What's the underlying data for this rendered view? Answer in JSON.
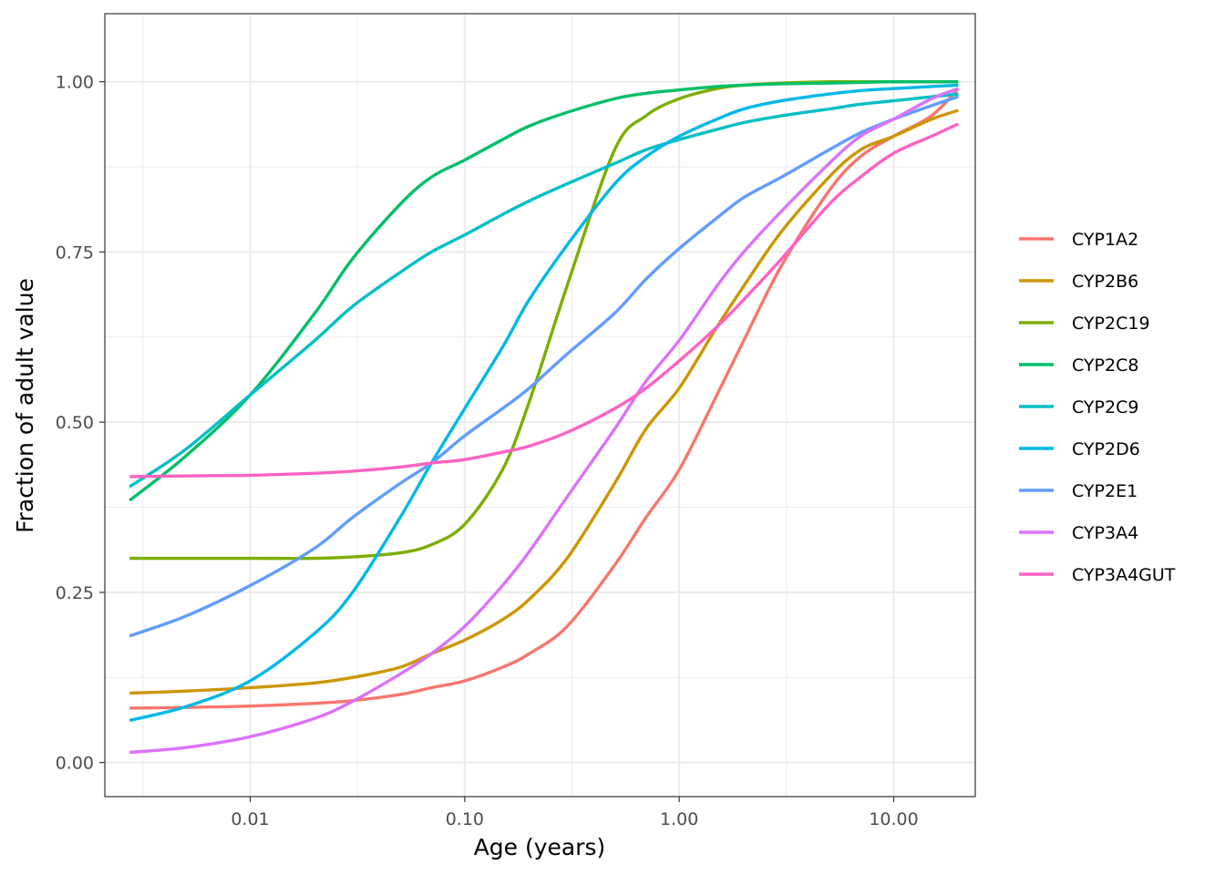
{
  "chart_data": {
    "type": "line",
    "title": "",
    "xlabel": "Age (years)",
    "ylabel": "Fraction of adult value",
    "x_scale": "log10",
    "xlim": [
      0.0021,
      24
    ],
    "ylim": [
      -0.05,
      1.1
    ],
    "x_ticks": [
      0.01,
      0.1,
      1,
      10
    ],
    "x_tick_labels": [
      "0.01",
      "0.10",
      "1.00",
      "10.00"
    ],
    "y_ticks": [
      0,
      0.25,
      0.5,
      0.75,
      1
    ],
    "y_tick_labels": [
      "0.00",
      "0.25",
      "0.50",
      "0.75",
      "1.00"
    ],
    "grid": true,
    "legend_position": "right",
    "x": [
      0.00274,
      0.005,
      0.01,
      0.02,
      0.03,
      0.05,
      0.07,
      0.1,
      0.15,
      0.2,
      0.3,
      0.5,
      0.7,
      1,
      1.5,
      2,
      3,
      5,
      7,
      10,
      15,
      20
    ],
    "series": [
      {
        "name": "CYP1A2",
        "color": "#F8766D",
        "values": [
          0.08,
          0.081,
          0.083,
          0.087,
          0.091,
          0.1,
          0.11,
          0.12,
          0.14,
          0.16,
          0.2,
          0.29,
          0.36,
          0.43,
          0.54,
          0.62,
          0.73,
          0.84,
          0.89,
          0.92,
          0.95,
          0.99
        ]
      },
      {
        "name": "CYP2B6",
        "color": "#CD9600",
        "values": [
          0.102,
          0.105,
          0.11,
          0.117,
          0.125,
          0.14,
          0.16,
          0.18,
          0.21,
          0.24,
          0.3,
          0.41,
          0.49,
          0.55,
          0.64,
          0.7,
          0.78,
          0.86,
          0.9,
          0.92,
          0.945,
          0.958
        ]
      },
      {
        "name": "CYP2C19",
        "color": "#7CAE00",
        "values": [
          0.3,
          0.3,
          0.3,
          0.3,
          0.302,
          0.308,
          0.32,
          0.35,
          0.43,
          0.53,
          0.7,
          0.9,
          0.95,
          0.975,
          0.99,
          0.995,
          0.998,
          1.0,
          1.0,
          1.0,
          1.0,
          1.0
        ]
      },
      {
        "name": "CYP2C8",
        "color": "#00BE67",
        "values": [
          0.385,
          0.45,
          0.54,
          0.66,
          0.74,
          0.82,
          0.86,
          0.885,
          0.915,
          0.935,
          0.955,
          0.975,
          0.983,
          0.988,
          0.993,
          0.995,
          0.997,
          0.998,
          0.999,
          1.0,
          1.0,
          1.0
        ]
      },
      {
        "name": "CYP2C9",
        "color": "#00BFC4",
        "values": [
          0.405,
          0.46,
          0.54,
          0.62,
          0.67,
          0.72,
          0.75,
          0.775,
          0.805,
          0.825,
          0.85,
          0.88,
          0.9,
          0.915,
          0.93,
          0.94,
          0.95,
          0.96,
          0.967,
          0.972,
          0.978,
          0.982
        ]
      },
      {
        "name": "CYP2D6",
        "color": "#00B8E7",
        "values": [
          0.062,
          0.082,
          0.12,
          0.19,
          0.25,
          0.36,
          0.44,
          0.52,
          0.61,
          0.68,
          0.76,
          0.85,
          0.89,
          0.92,
          0.945,
          0.96,
          0.972,
          0.982,
          0.987,
          0.99,
          0.993,
          0.995
        ]
      },
      {
        "name": "CYP2E1",
        "color": "#619CFF",
        "values": [
          0.186,
          0.215,
          0.26,
          0.315,
          0.36,
          0.41,
          0.44,
          0.48,
          0.52,
          0.55,
          0.6,
          0.66,
          0.71,
          0.755,
          0.8,
          0.83,
          0.86,
          0.9,
          0.925,
          0.945,
          0.965,
          0.978
        ]
      },
      {
        "name": "CYP3A4",
        "color": "#DB72FB",
        "values": [
          0.015,
          0.022,
          0.038,
          0.065,
          0.09,
          0.13,
          0.16,
          0.2,
          0.26,
          0.31,
          0.39,
          0.49,
          0.56,
          0.62,
          0.7,
          0.75,
          0.81,
          0.88,
          0.92,
          0.945,
          0.975,
          0.99
        ]
      },
      {
        "name": "CYP3A4GUT",
        "color": "#FF61C3",
        "values": [
          0.42,
          0.421,
          0.422,
          0.425,
          0.428,
          0.434,
          0.44,
          0.445,
          0.456,
          0.465,
          0.485,
          0.52,
          0.55,
          0.59,
          0.64,
          0.68,
          0.74,
          0.82,
          0.86,
          0.895,
          0.92,
          0.938
        ]
      }
    ]
  }
}
